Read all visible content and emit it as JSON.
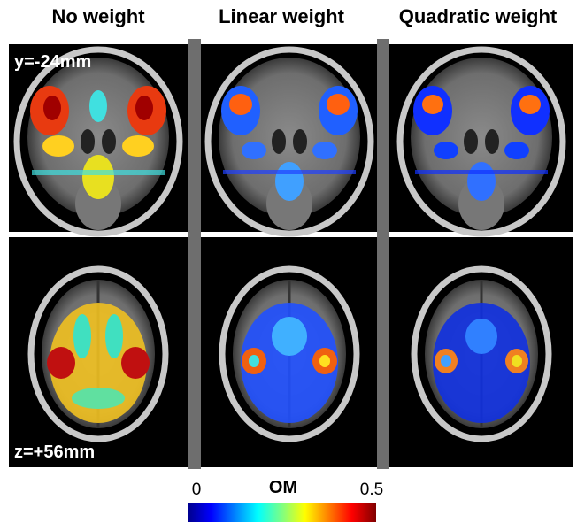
{
  "columns": [
    "No weight",
    "Linear weight",
    "Quadratic weight"
  ],
  "rows": [
    "y=-24mm",
    "z=+56mm"
  ],
  "colorbar": {
    "label": "OM",
    "lim": [
      0,
      0.5
    ],
    "ticks": [
      0,
      0.5
    ]
  }
}
